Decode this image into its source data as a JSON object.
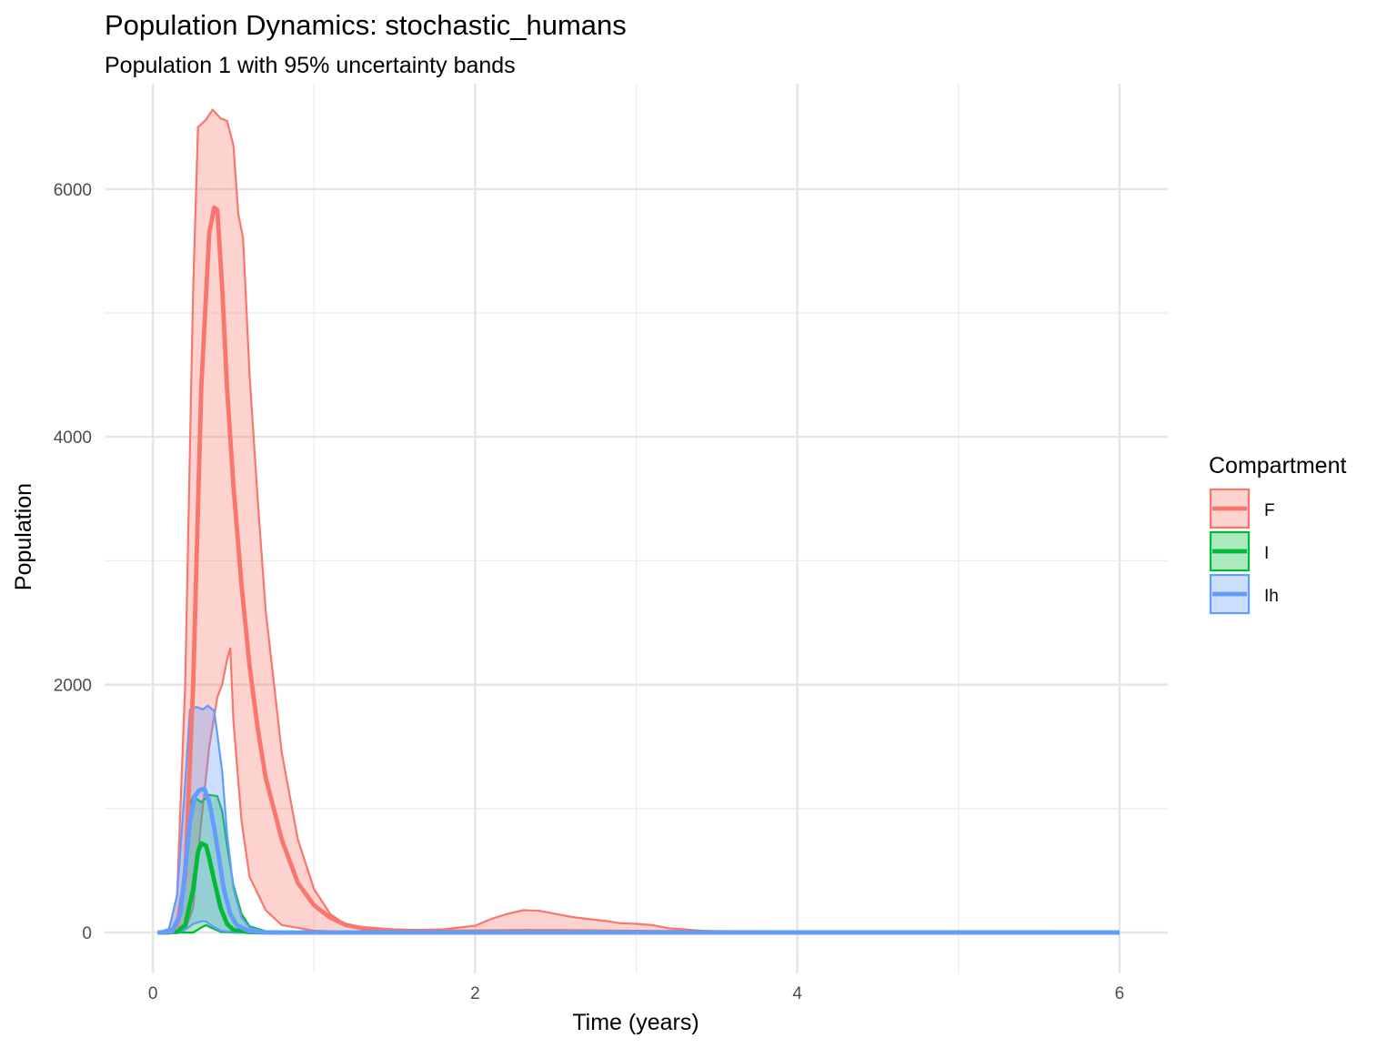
{
  "chart_data": {
    "type": "area",
    "title": "Population Dynamics: stochastic_humans",
    "subtitle": "Population 1 with 95% uncertainty bands",
    "xlabel": "Time (years)",
    "ylabel": "Population",
    "xlim": [
      -0.3,
      6.3
    ],
    "ylim": [
      -330,
      6850
    ],
    "x_ticks": [
      0,
      2,
      4,
      6
    ],
    "y_ticks": [
      0,
      2000,
      4000,
      6000
    ],
    "grid": true,
    "legend": {
      "title": "Compartment",
      "position": "right"
    },
    "series": [
      {
        "name": "F",
        "color": "#F8766D",
        "median": [
          [
            0.03,
            0
          ],
          [
            0.1,
            0
          ],
          [
            0.15,
            60
          ],
          [
            0.2,
            450
          ],
          [
            0.25,
            2000
          ],
          [
            0.3,
            4400
          ],
          [
            0.35,
            5650
          ],
          [
            0.38,
            5850
          ],
          [
            0.4,
            5830
          ],
          [
            0.43,
            5200
          ],
          [
            0.46,
            4400
          ],
          [
            0.5,
            3600
          ],
          [
            0.55,
            2800
          ],
          [
            0.6,
            2150
          ],
          [
            0.65,
            1650
          ],
          [
            0.7,
            1250
          ],
          [
            0.8,
            750
          ],
          [
            0.9,
            400
          ],
          [
            1.0,
            220
          ],
          [
            1.1,
            120
          ],
          [
            1.2,
            60
          ],
          [
            1.3,
            35
          ],
          [
            1.5,
            15
          ],
          [
            1.8,
            8
          ],
          [
            2.0,
            8
          ],
          [
            2.3,
            12
          ],
          [
            2.6,
            10
          ],
          [
            3.0,
            5
          ],
          [
            3.5,
            2
          ],
          [
            4.0,
            1
          ],
          [
            6.0,
            0
          ]
        ],
        "lower": [
          [
            0.03,
            0
          ],
          [
            0.15,
            0
          ],
          [
            0.2,
            20
          ],
          [
            0.25,
            200
          ],
          [
            0.3,
            900
          ],
          [
            0.35,
            1500
          ],
          [
            0.4,
            1900
          ],
          [
            0.43,
            2000
          ],
          [
            0.46,
            2200
          ],
          [
            0.48,
            2300
          ],
          [
            0.5,
            1700
          ],
          [
            0.55,
            900
          ],
          [
            0.6,
            450
          ],
          [
            0.7,
            180
          ],
          [
            0.8,
            60
          ],
          [
            1.0,
            15
          ],
          [
            1.2,
            5
          ],
          [
            1.5,
            2
          ],
          [
            2.0,
            0
          ],
          [
            6.0,
            0
          ]
        ],
        "upper": [
          [
            0.03,
            0
          ],
          [
            0.1,
            20
          ],
          [
            0.15,
            300
          ],
          [
            0.2,
            2000
          ],
          [
            0.25,
            5200
          ],
          [
            0.28,
            6500
          ],
          [
            0.33,
            6560
          ],
          [
            0.37,
            6640
          ],
          [
            0.42,
            6570
          ],
          [
            0.46,
            6550
          ],
          [
            0.5,
            6350
          ],
          [
            0.53,
            5800
          ],
          [
            0.56,
            5600
          ],
          [
            0.6,
            4500
          ],
          [
            0.65,
            3500
          ],
          [
            0.7,
            2600
          ],
          [
            0.8,
            1450
          ],
          [
            0.9,
            750
          ],
          [
            1.0,
            350
          ],
          [
            1.1,
            150
          ],
          [
            1.2,
            60
          ],
          [
            1.4,
            30
          ],
          [
            1.6,
            20
          ],
          [
            1.8,
            25
          ],
          [
            2.0,
            55
          ],
          [
            2.1,
            110
          ],
          [
            2.2,
            150
          ],
          [
            2.3,
            180
          ],
          [
            2.4,
            175
          ],
          [
            2.5,
            150
          ],
          [
            2.6,
            125
          ],
          [
            2.7,
            110
          ],
          [
            2.8,
            95
          ],
          [
            2.9,
            75
          ],
          [
            3.0,
            70
          ],
          [
            3.1,
            60
          ],
          [
            3.2,
            35
          ],
          [
            3.3,
            25
          ],
          [
            3.4,
            15
          ],
          [
            3.6,
            5
          ],
          [
            3.8,
            2
          ],
          [
            4.0,
            0
          ],
          [
            6.0,
            0
          ]
        ]
      },
      {
        "name": "I",
        "color": "#00BA38",
        "median": [
          [
            0.03,
            0
          ],
          [
            0.15,
            5
          ],
          [
            0.2,
            60
          ],
          [
            0.25,
            350
          ],
          [
            0.28,
            650
          ],
          [
            0.3,
            720
          ],
          [
            0.33,
            700
          ],
          [
            0.35,
            600
          ],
          [
            0.38,
            420
          ],
          [
            0.42,
            200
          ],
          [
            0.46,
            70
          ],
          [
            0.5,
            20
          ],
          [
            0.6,
            3
          ],
          [
            0.8,
            0
          ],
          [
            6.0,
            0
          ]
        ],
        "lower": [
          [
            0.03,
            0
          ],
          [
            0.25,
            0
          ],
          [
            0.3,
            40
          ],
          [
            0.33,
            60
          ],
          [
            0.36,
            40
          ],
          [
            0.42,
            5
          ],
          [
            0.5,
            0
          ],
          [
            6.0,
            0
          ]
        ],
        "upper": [
          [
            0.03,
            0
          ],
          [
            0.12,
            10
          ],
          [
            0.17,
            150
          ],
          [
            0.2,
            600
          ],
          [
            0.22,
            1000
          ],
          [
            0.25,
            1100
          ],
          [
            0.3,
            1050
          ],
          [
            0.35,
            1110
          ],
          [
            0.4,
            1100
          ],
          [
            0.43,
            980
          ],
          [
            0.46,
            700
          ],
          [
            0.5,
            380
          ],
          [
            0.55,
            150
          ],
          [
            0.6,
            50
          ],
          [
            0.7,
            10
          ],
          [
            0.8,
            0
          ],
          [
            2.0,
            0
          ],
          [
            2.3,
            15
          ],
          [
            2.5,
            20
          ],
          [
            2.7,
            10
          ],
          [
            3.0,
            2
          ],
          [
            3.3,
            0
          ],
          [
            6.0,
            0
          ]
        ]
      },
      {
        "name": "Ih",
        "color": "#619CFF",
        "median": [
          [
            0.03,
            0
          ],
          [
            0.12,
            10
          ],
          [
            0.17,
            150
          ],
          [
            0.2,
            500
          ],
          [
            0.23,
            900
          ],
          [
            0.26,
            1100
          ],
          [
            0.29,
            1150
          ],
          [
            0.32,
            1160
          ],
          [
            0.35,
            1050
          ],
          [
            0.38,
            850
          ],
          [
            0.41,
            600
          ],
          [
            0.44,
            350
          ],
          [
            0.48,
            150
          ],
          [
            0.52,
            60
          ],
          [
            0.6,
            10
          ],
          [
            0.7,
            2
          ],
          [
            0.8,
            0
          ],
          [
            6.0,
            0
          ]
        ],
        "lower": [
          [
            0.03,
            0
          ],
          [
            0.15,
            0
          ],
          [
            0.2,
            20
          ],
          [
            0.25,
            70
          ],
          [
            0.3,
            90
          ],
          [
            0.33,
            90
          ],
          [
            0.37,
            50
          ],
          [
            0.42,
            15
          ],
          [
            0.5,
            2
          ],
          [
            0.6,
            0
          ],
          [
            6.0,
            0
          ]
        ],
        "upper": [
          [
            0.03,
            0
          ],
          [
            0.1,
            30
          ],
          [
            0.15,
            300
          ],
          [
            0.2,
            1200
          ],
          [
            0.23,
            1800
          ],
          [
            0.27,
            1820
          ],
          [
            0.31,
            1800
          ],
          [
            0.34,
            1830
          ],
          [
            0.38,
            1790
          ],
          [
            0.4,
            1600
          ],
          [
            0.43,
            1300
          ],
          [
            0.46,
            800
          ],
          [
            0.5,
            350
          ],
          [
            0.55,
            120
          ],
          [
            0.6,
            40
          ],
          [
            0.7,
            5
          ],
          [
            0.8,
            0
          ],
          [
            6.0,
            0
          ]
        ]
      }
    ]
  }
}
